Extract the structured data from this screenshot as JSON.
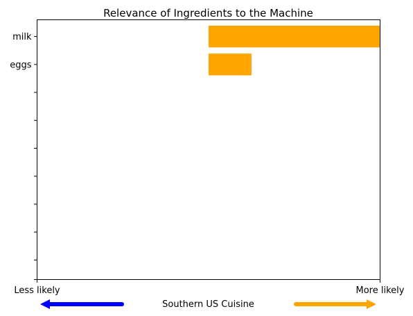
{
  "chart_data": {
    "type": "bar",
    "orientation": "horizontal",
    "title": "Relevance of Ingredients to the Machine",
    "categories": [
      "milk",
      "eggs"
    ],
    "values": [
      0.5,
      0.125
    ],
    "xlim": [
      -0.5,
      0.5
    ],
    "slots": 9,
    "grid": false,
    "bar_color": "#FFA500",
    "x_axis": {
      "left_label": "Less likely",
      "right_label": "More likely",
      "center_label": "Southern US Cuisine",
      "left_arrow_color": "#0000FF",
      "right_arrow_color": "#FFA500"
    }
  }
}
